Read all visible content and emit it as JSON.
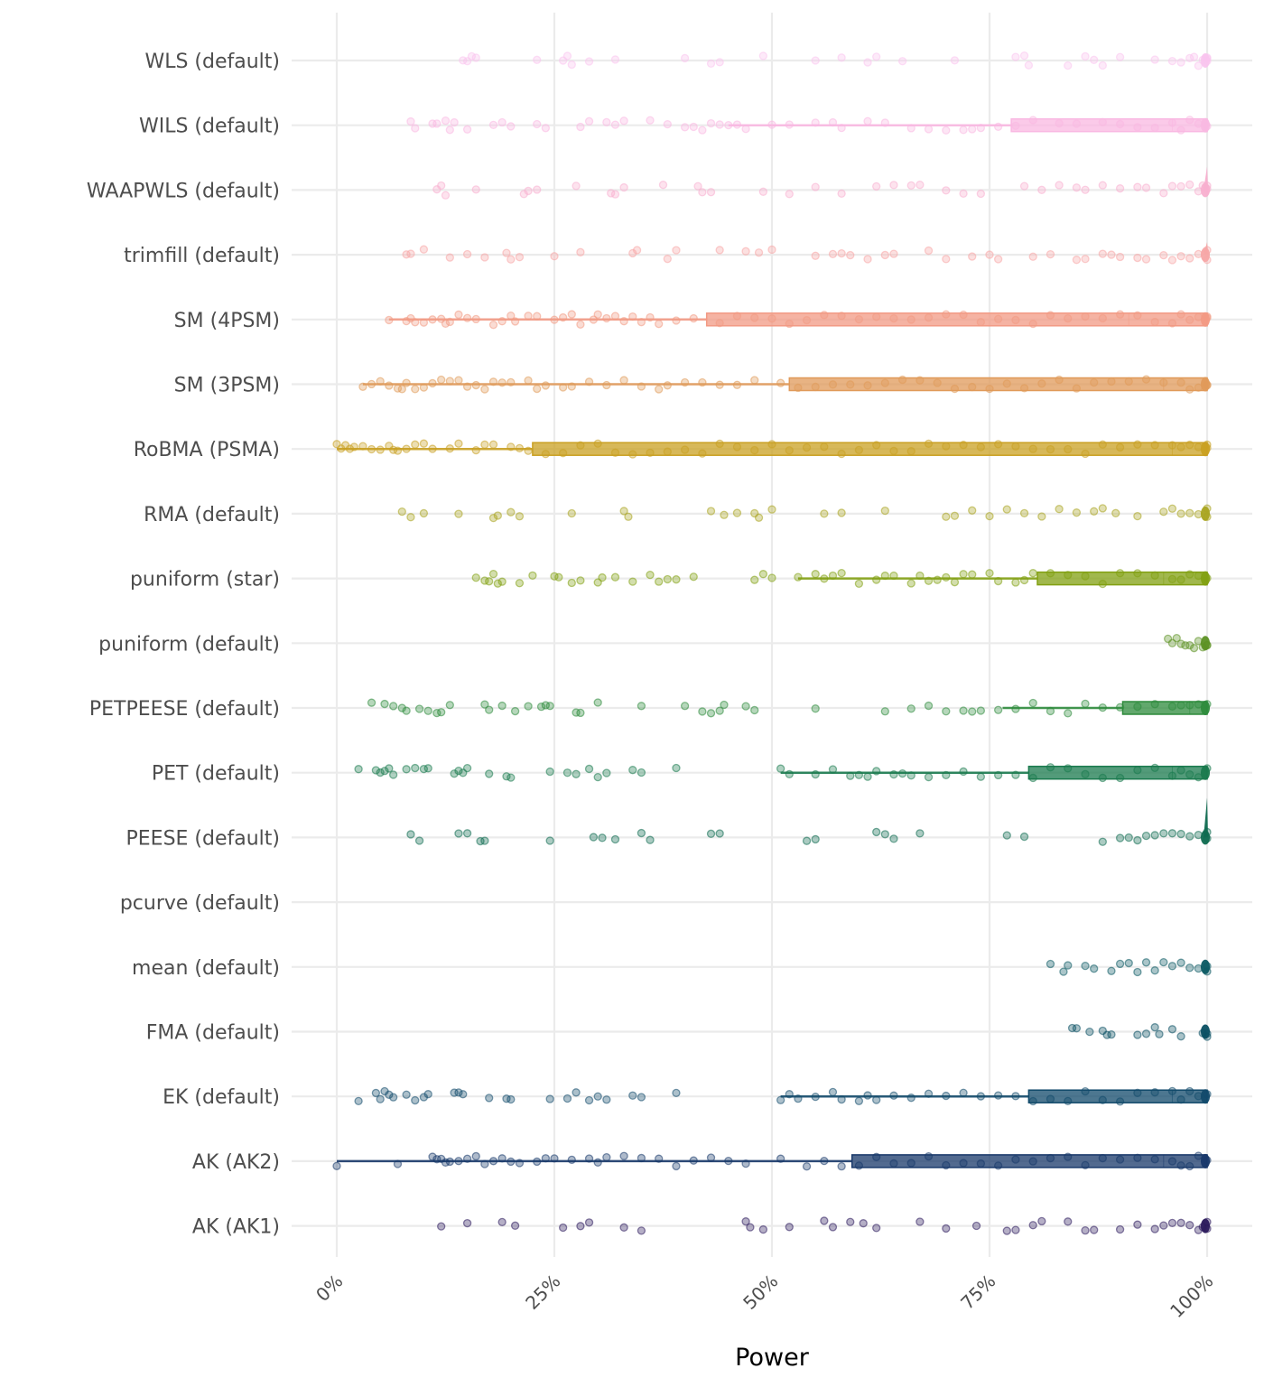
{
  "chart_data": {
    "type": "scatter",
    "subtype": "jittered strip plot with boxplot and half-violin per method",
    "title": "",
    "xlabel": "Power",
    "ylabel": "",
    "xlim": [
      0,
      100
    ],
    "x_unit": "%",
    "x_ticks": [
      "0%",
      "25%",
      "50%",
      "75%",
      "100%"
    ],
    "x_tick_values": [
      0,
      25,
      50,
      75,
      100
    ],
    "grid": true,
    "legend": "none",
    "series": [
      {
        "name": "WLS (default)",
        "color": "#F9C4EE",
        "box": null,
        "points": [
          14.5,
          15,
          15.5,
          16,
          23,
          26,
          26.5,
          27,
          29,
          32,
          40,
          43,
          44,
          49,
          55,
          58,
          61,
          62,
          65,
          71,
          78,
          79,
          79.5,
          84,
          86,
          87,
          88,
          90,
          94,
          96,
          97,
          98,
          98.5,
          99,
          99.5,
          100,
          100,
          100
        ]
      },
      {
        "name": "WILS (default)",
        "color": "#F9B8E2",
        "box": {
          "whisker_low": 45,
          "q1": 77.5,
          "median": 96,
          "q3": 100,
          "whisker_high": 100
        },
        "points": [
          8.5,
          9,
          11,
          11.5,
          12.5,
          13,
          13.5,
          15,
          18,
          19,
          20,
          23,
          24,
          28,
          29,
          31,
          32,
          33,
          36,
          38,
          40,
          41,
          42,
          43,
          44,
          45,
          46,
          47,
          50,
          52,
          55,
          57,
          58,
          61,
          63,
          66,
          68,
          70,
          72,
          73,
          74,
          76,
          78,
          80,
          83,
          85,
          88,
          90,
          92,
          94,
          96,
          97,
          98,
          99,
          100
        ]
      },
      {
        "name": "WAAPWLS (default)",
        "color": "#F8AFCF",
        "box": null,
        "points": [
          11.5,
          12,
          12.5,
          16,
          21.5,
          22,
          23,
          27.5,
          31.5,
          32,
          33,
          37.5,
          41.5,
          42,
          43,
          49,
          52,
          55,
          58,
          62,
          64,
          66,
          67,
          70,
          72,
          74,
          79,
          81,
          83,
          85,
          86,
          88,
          90,
          92,
          93,
          95,
          96,
          97,
          98,
          99,
          99.5,
          100,
          100
        ]
      },
      {
        "name": "trimfill (default)",
        "color": "#F7A6A6",
        "box": null,
        "points": [
          8,
          8.5,
          10,
          13,
          15,
          17,
          19.5,
          20,
          21,
          25,
          28,
          34,
          34.5,
          38,
          39,
          44,
          47,
          48.5,
          50,
          55,
          57,
          58,
          59,
          61,
          63,
          64,
          68,
          70,
          73,
          75,
          76,
          80,
          82,
          85,
          86,
          88,
          89,
          90,
          92,
          93,
          95,
          96,
          97,
          98,
          99,
          100,
          100
        ]
      },
      {
        "name": "SM (4PSM)",
        "color": "#F29A84",
        "box": {
          "whisker_low": 6,
          "q1": 42.5,
          "median": 91,
          "q3": 100,
          "whisker_high": 100
        },
        "points": [
          6,
          8,
          8.5,
          9,
          10,
          11,
          12,
          12.5,
          13,
          14,
          15,
          16,
          18,
          19,
          20,
          20.5,
          22,
          23,
          25,
          26,
          27,
          28,
          29.5,
          30,
          31,
          32,
          33,
          34,
          35,
          36,
          37,
          39,
          41,
          44,
          46,
          48,
          50,
          52,
          54,
          56,
          58,
          60,
          62,
          64,
          66,
          68,
          70,
          72,
          74,
          76,
          78,
          80,
          82,
          84,
          86,
          88,
          90,
          92,
          94,
          96,
          97,
          98,
          99,
          100,
          100
        ]
      },
      {
        "name": "SM (3PSM)",
        "color": "#E09A5A",
        "box": {
          "whisker_low": 3,
          "q1": 52,
          "median": 95,
          "q3": 100,
          "whisker_high": 100
        },
        "points": [
          3,
          4,
          5,
          6,
          7,
          7.5,
          8,
          9,
          10,
          11,
          12,
          13,
          14,
          15,
          16,
          17,
          18,
          19,
          20,
          22,
          23,
          24,
          26,
          27,
          29,
          31,
          33,
          35,
          37,
          38,
          40,
          42,
          44,
          46,
          48,
          51,
          53,
          55,
          57,
          59,
          61,
          63,
          65,
          67,
          69,
          71,
          73,
          75,
          77,
          79,
          81,
          83,
          85,
          87,
          89,
          91,
          93,
          95,
          97,
          98,
          99,
          100,
          100
        ]
      },
      {
        "name": "RoBMA (PSMA)",
        "color": "#C9A022",
        "box": {
          "whisker_low": 0,
          "q1": 22.5,
          "median": 96,
          "q3": 100,
          "whisker_high": 100
        },
        "points": [
          0,
          0.5,
          1,
          1.5,
          2,
          3,
          4,
          5,
          6,
          6.5,
          7,
          8,
          9,
          10,
          11,
          13,
          14,
          16,
          17,
          18,
          20,
          21,
          22,
          24,
          26,
          28,
          30,
          32,
          34,
          36,
          38,
          40,
          42,
          44,
          46,
          48,
          50,
          52,
          54,
          56,
          58,
          60,
          62,
          64,
          66,
          68,
          70,
          72,
          74,
          76,
          78,
          80,
          82,
          84,
          86,
          88,
          90,
          92,
          94,
          96,
          97,
          98,
          99,
          100,
          100
        ]
      },
      {
        "name": "RMA (default)",
        "color": "#A9A420",
        "box": null,
        "points": [
          7.5,
          8.5,
          10,
          14,
          18,
          18.5,
          20,
          21,
          27,
          33,
          33.5,
          43,
          44.5,
          46,
          48,
          48.5,
          50,
          56,
          58,
          63,
          70,
          71,
          73,
          75,
          77,
          79,
          81,
          83,
          85,
          87,
          88,
          89.5,
          92,
          95,
          96,
          97,
          98,
          99,
          100,
          100
        ]
      },
      {
        "name": "puniform (star)",
        "color": "#82A012",
        "box": {
          "whisker_low": 53,
          "q1": 80.5,
          "median": 95,
          "q3": 100,
          "whisker_high": 100
        },
        "points": [
          16,
          17,
          17.5,
          18,
          18.5,
          19,
          21,
          22.5,
          25,
          25.5,
          27,
          28,
          30,
          30.5,
          32,
          34,
          36,
          37,
          38,
          39,
          41,
          48,
          49,
          50,
          53,
          55,
          56,
          57,
          58,
          60,
          62,
          63,
          64,
          66,
          67,
          68,
          69,
          70,
          71,
          72,
          73,
          75,
          76,
          78,
          79,
          80,
          82,
          84,
          86,
          88,
          90,
          92,
          94,
          96,
          97,
          98,
          99,
          100
        ]
      },
      {
        "name": "puniform (default)",
        "color": "#5C9123",
        "box": null,
        "points": [
          95.5,
          96,
          96.5,
          97,
          97.5,
          98,
          98.5,
          99,
          99.5,
          100,
          100
        ]
      },
      {
        "name": "PETPEESE (default)",
        "color": "#2E8B3C",
        "box": {
          "whisker_low": 76.5,
          "q1": 90.3,
          "median": 98,
          "q3": 100,
          "whisker_high": 100
        },
        "points": [
          4,
          5.5,
          6.5,
          7.5,
          8,
          9.5,
          10.5,
          11.5,
          12,
          13,
          17,
          17.5,
          19,
          20.5,
          22,
          23.5,
          24,
          24.5,
          27.5,
          28,
          30,
          35,
          40,
          42,
          43,
          44,
          44.5,
          47,
          48,
          55,
          63,
          66,
          68,
          70,
          72,
          73,
          74,
          76,
          78,
          80,
          82,
          84,
          86,
          88,
          90,
          92,
          94,
          96,
          97,
          98,
          99,
          100
        ]
      },
      {
        "name": "PET (default)",
        "color": "#1A7A4E",
        "box": {
          "whisker_low": 51,
          "q1": 79.5,
          "median": 96,
          "q3": 100,
          "whisker_high": 100
        },
        "points": [
          2.5,
          4.5,
          5,
          5.5,
          6,
          6.5,
          8,
          9,
          10,
          10.5,
          13.5,
          14,
          14.5,
          15,
          17.5,
          19.5,
          20,
          24.5,
          26.5,
          27.5,
          29,
          30,
          31,
          34,
          35,
          39,
          51,
          52,
          55,
          57,
          59,
          60,
          61,
          62,
          64,
          65,
          66,
          68,
          70,
          72,
          74,
          76,
          78,
          80,
          82,
          84,
          86,
          88,
          90,
          92,
          94,
          96,
          97,
          98,
          99,
          100
        ]
      },
      {
        "name": "PEESE (default)",
        "color": "#0F6B50",
        "box": null,
        "points": [
          8.5,
          9.5,
          14,
          15,
          16.5,
          17,
          24.5,
          29.5,
          30.5,
          32,
          35,
          36,
          43,
          44,
          54,
          55,
          62,
          63,
          64,
          67,
          77,
          79,
          88,
          90,
          91,
          92,
          93,
          94,
          95,
          96,
          97,
          98,
          99,
          100,
          100
        ]
      },
      {
        "name": "pcurve (default)",
        "color": "#0D5F5C",
        "box": null,
        "points": []
      },
      {
        "name": "mean (default)",
        "color": "#0B5A63",
        "box": null,
        "points": [
          82,
          83.5,
          84,
          86,
          87,
          89,
          90,
          91,
          92,
          93,
          94,
          95,
          96,
          97,
          98,
          99,
          100,
          100
        ]
      },
      {
        "name": "FMA (default)",
        "color": "#0A4F62",
        "box": null,
        "points": [
          84.5,
          85,
          86.5,
          88,
          88.5,
          89,
          92,
          93,
          94,
          94.5,
          96,
          97,
          99.5,
          100,
          100
        ]
      },
      {
        "name": "EK (default)",
        "color": "#124A6B",
        "box": {
          "whisker_low": 51,
          "q1": 79.5,
          "median": 96,
          "q3": 100,
          "whisker_high": 100
        },
        "points": [
          2.5,
          4.5,
          5,
          5.5,
          6,
          6.5,
          8,
          9,
          10,
          10.5,
          13.5,
          14,
          14.5,
          17.5,
          19.5,
          20,
          24.5,
          26.5,
          27.5,
          29,
          30,
          31,
          34,
          35,
          39,
          51,
          52,
          53,
          55,
          57,
          58,
          60,
          61,
          62,
          64,
          66,
          68,
          70,
          72,
          74,
          76,
          78,
          80,
          82,
          84,
          86,
          88,
          90,
          92,
          94,
          96,
          97,
          98,
          99,
          100
        ]
      },
      {
        "name": "AK (AK2)",
        "color": "#18386A",
        "box": {
          "whisker_low": 0,
          "q1": 59.2,
          "median": 95,
          "q3": 100,
          "whisker_high": 100
        },
        "points": [
          0,
          7,
          11,
          11.5,
          12,
          12.5,
          13,
          14,
          15,
          16,
          17,
          18,
          19,
          20,
          21,
          23,
          24,
          25,
          27,
          29,
          30,
          31,
          33,
          35,
          37,
          39,
          41,
          43,
          45,
          47,
          51,
          54,
          56,
          58,
          60,
          62,
          64,
          66,
          68,
          70,
          72,
          74,
          76,
          78,
          80,
          82,
          84,
          86,
          88,
          90,
          92,
          94,
          96,
          97,
          98,
          99,
          100
        ]
      },
      {
        "name": "AK (AK1)",
        "color": "#2B1A5C",
        "box": null,
        "points": [
          12,
          15,
          19,
          20.5,
          26,
          28,
          29,
          33,
          35,
          47,
          47.5,
          49,
          52,
          56,
          57,
          59,
          60.5,
          62,
          67,
          70,
          73.5,
          77,
          78,
          80,
          81,
          84,
          86,
          87,
          90,
          92,
          94,
          95,
          96,
          97,
          98,
          99,
          99.5,
          100,
          100
        ]
      }
    ]
  }
}
